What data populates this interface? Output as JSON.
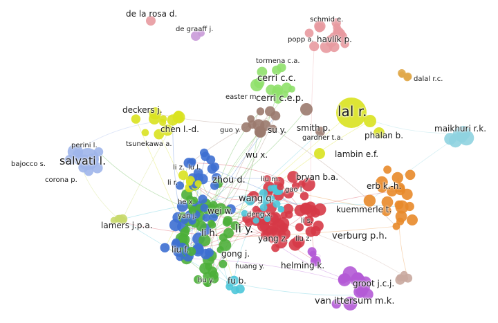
{
  "clusters": {
    "red": "#d63a47",
    "green": "#4caf3a",
    "blue": "#3d6fd1",
    "yellow": "#d9e21f",
    "purple": "#b45ad6",
    "cyan": "#4cc6d9",
    "orange": "#e88a2a",
    "brown": "#9b7a6e",
    "pink": "#e89aa0",
    "lightgreen": "#8fe06a",
    "lavender": "#9fb5ea",
    "olive": "#c8d96b",
    "skyblue": "#8fd3e0",
    "tan": "#e0a94a",
    "violet": "#c99ad8"
  },
  "authors": {
    "de_la_rosa": "de la rosa d.",
    "de_graaff": "de graaff j.",
    "schmid": "schmid e.",
    "popp": "popp a.",
    "havlik": "havlík p.",
    "tormena": "tormena c.a.",
    "cerri_cc": "cerri c.c.",
    "easter": "easter m.",
    "cerri_cep": "cerri c.e.p.",
    "lal": "lal r.",
    "dalal": "dalal r.c.",
    "maikhuri": "maikhuri r.k.",
    "deckers": "deckers j.",
    "chen": "chen l.-d.",
    "guo": "guo y.",
    "su": "su y.",
    "smith": "smith p.",
    "phalan": "phalan b.",
    "gardner": "gardner t.a.",
    "tsunekawa": "tsunekawa a.",
    "perini": "perini l.",
    "salvati": "salvati l.",
    "bajocco": "bajocco s.",
    "corona": "corona p.",
    "wu": "wu x.",
    "lambin": "lambin e.f.",
    "li_z": "li z.",
    "lu_l": "lu l.",
    "li_r": "li r.",
    "zhou": "zhou d.",
    "liu_m": "liu m.",
    "bryan": "bryan b.a.",
    "gao": "gao l.",
    "erb": "erb k.-h.",
    "wang_q": "wang q.",
    "he_x": "he x.",
    "wei_w": "wei w.",
    "kuemmerle": "kuemmerle t.",
    "lamers": "lamers j.p.a.",
    "yan": "yan j.",
    "deng": "deng x.",
    "li_s": "li s.",
    "li_h": "li h.",
    "li_y": "li y.",
    "verburg": "verburg p.h.",
    "yang_z": "yang z.",
    "liu_z": "liu z.",
    "liu_f": "liu f.",
    "gong": "gong j.",
    "huang": "huang y.",
    "helming": "helming k.",
    "hu": "hu y.",
    "fu": "fu b.",
    "groot": "groot j.c.j.",
    "van_ittersum": "van ittersum m.k."
  }
}
